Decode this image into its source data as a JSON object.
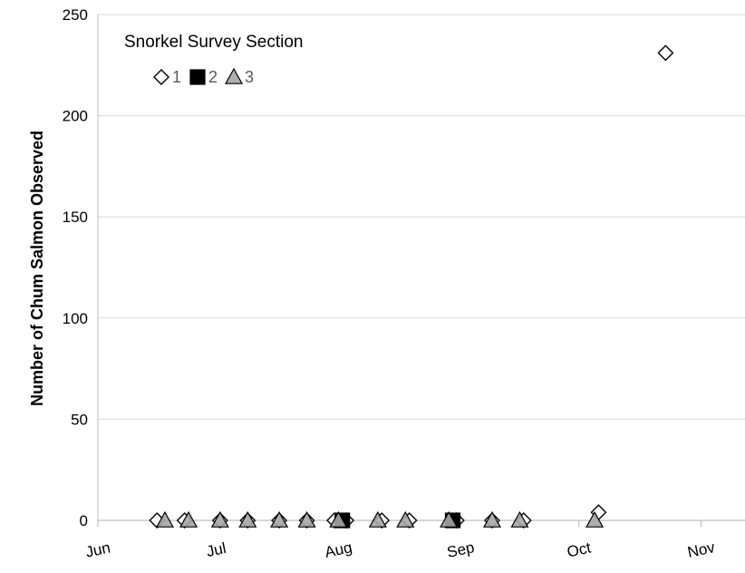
{
  "chart_data": {
    "type": "scatter",
    "title": "",
    "ylabel": "Number of Chum Salmon Observed",
    "xlabel": "",
    "ylim": [
      0,
      250
    ],
    "yticks": [
      0,
      50,
      100,
      150,
      200,
      250
    ],
    "xlim": [
      "Jun 1",
      "Nov 1"
    ],
    "xticks": [
      {
        "label": "Jun",
        "date": "Jun 1"
      },
      {
        "label": "Jul",
        "date": "Jul 1"
      },
      {
        "label": "Aug",
        "date": "Aug 1"
      },
      {
        "label": "Sep",
        "date": "Sep 1"
      },
      {
        "label": "Oct",
        "date": "Oct 1"
      },
      {
        "label": "Nov",
        "date": "Nov 1"
      }
    ],
    "grid": "horizontal",
    "legend": {
      "title": "Snorkel Survey Section",
      "placement": "top-left"
    },
    "series": [
      {
        "name": "1",
        "marker": "diamond",
        "fill": "#ffffff",
        "stroke": "#000000",
        "points": [
          {
            "x": "Jun 16",
            "y": 0
          },
          {
            "x": "Jun 23",
            "y": 0
          },
          {
            "x": "Jul 2",
            "y": 0
          },
          {
            "x": "Jul 9",
            "y": 0
          },
          {
            "x": "Jul 17",
            "y": 0
          },
          {
            "x": "Jul 24",
            "y": 0
          },
          {
            "x": "Jul 31",
            "y": 0
          },
          {
            "x": "Aug 3",
            "y": 0
          },
          {
            "x": "Aug 12",
            "y": 0
          },
          {
            "x": "Aug 19",
            "y": 0
          },
          {
            "x": "Aug 31",
            "y": 0
          },
          {
            "x": "Sep 9",
            "y": 0
          },
          {
            "x": "Sep 17",
            "y": 0
          },
          {
            "x": "Oct 6",
            "y": 4
          },
          {
            "x": "Oct 23",
            "y": 231
          }
        ]
      },
      {
        "name": "2",
        "marker": "square",
        "fill": "#000000",
        "stroke": "#000000",
        "points": [
          {
            "x": "Aug 2",
            "y": 0
          },
          {
            "x": "Aug 30",
            "y": 0
          }
        ]
      },
      {
        "name": "3",
        "marker": "triangle",
        "fill": "#a6a6a6",
        "stroke": "#000000",
        "points": [
          {
            "x": "Jun 18",
            "y": 0
          },
          {
            "x": "Jun 24",
            "y": 0
          },
          {
            "x": "Jul 2",
            "y": 0
          },
          {
            "x": "Jul 9",
            "y": 0
          },
          {
            "x": "Jul 17",
            "y": 0
          },
          {
            "x": "Jul 24",
            "y": 0
          },
          {
            "x": "Aug 1",
            "y": 0
          },
          {
            "x": "Aug 11",
            "y": 0
          },
          {
            "x": "Aug 18",
            "y": 0
          },
          {
            "x": "Aug 29",
            "y": 0
          },
          {
            "x": "Sep 9",
            "y": 0
          },
          {
            "x": "Sep 16",
            "y": 0
          },
          {
            "x": "Oct 5",
            "y": 0
          }
        ]
      }
    ]
  }
}
